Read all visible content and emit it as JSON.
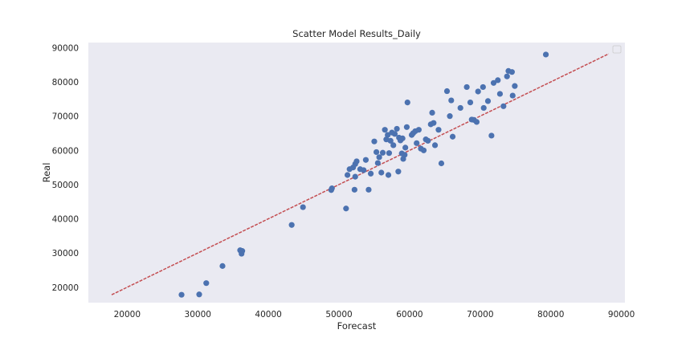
{
  "chart_data": {
    "type": "scatter",
    "title": "Scatter Model Results_Daily",
    "xlabel": "Forecast",
    "ylabel": "Real",
    "xlim": [
      14500,
      90500
    ],
    "ylim": [
      15500,
      91500
    ],
    "xticks": [
      20000,
      30000,
      40000,
      50000,
      60000,
      70000,
      80000,
      90000
    ],
    "yticks": [
      20000,
      30000,
      40000,
      50000,
      60000,
      70000,
      80000,
      90000
    ],
    "grid": false,
    "legend": "top-right (empty)",
    "colors": {
      "background": "#eaeaf2",
      "points": "#4c72b0",
      "fit_line": "#c44e52"
    },
    "fit_line": {
      "style": "dashed",
      "from": [
        17800,
        17800
      ],
      "to": [
        88200,
        88200
      ]
    },
    "points": [
      [
        27700,
        17800
      ],
      [
        30200,
        17900
      ],
      [
        31200,
        21200
      ],
      [
        33500,
        26200
      ],
      [
        36000,
        30800
      ],
      [
        36300,
        30600
      ],
      [
        36200,
        29800
      ],
      [
        43300,
        38200
      ],
      [
        44900,
        43400
      ],
      [
        48900,
        48400
      ],
      [
        49000,
        48900
      ],
      [
        51000,
        43000
      ],
      [
        51200,
        52800
      ],
      [
        51500,
        54500
      ],
      [
        52000,
        55000
      ],
      [
        52300,
        56000
      ],
      [
        52500,
        56800
      ],
      [
        52200,
        48500
      ],
      [
        52300,
        52300
      ],
      [
        53000,
        54500
      ],
      [
        53500,
        54200
      ],
      [
        53800,
        57200
      ],
      [
        54200,
        48500
      ],
      [
        54500,
        53200
      ],
      [
        55000,
        62600
      ],
      [
        55300,
        59500
      ],
      [
        55500,
        56300
      ],
      [
        55700,
        58000
      ],
      [
        56000,
        53500
      ],
      [
        56200,
        59300
      ],
      [
        56500,
        66000
      ],
      [
        56700,
        63200
      ],
      [
        56900,
        64500
      ],
      [
        57000,
        52800
      ],
      [
        57100,
        59200
      ],
      [
        57300,
        62800
      ],
      [
        57500,
        65200
      ],
      [
        57700,
        61500
      ],
      [
        57900,
        64800
      ],
      [
        58200,
        66300
      ],
      [
        58400,
        53800
      ],
      [
        58500,
        63700
      ],
      [
        58700,
        62900
      ],
      [
        58900,
        59100
      ],
      [
        59000,
        63500
      ],
      [
        59100,
        57500
      ],
      [
        59300,
        58700
      ],
      [
        59400,
        60800
      ],
      [
        59600,
        66800
      ],
      [
        59700,
        74000
      ],
      [
        60300,
        64500
      ],
      [
        60500,
        65000
      ],
      [
        60800,
        65600
      ],
      [
        61000,
        62100
      ],
      [
        61300,
        66000
      ],
      [
        61600,
        60500
      ],
      [
        62000,
        60000
      ],
      [
        62300,
        63200
      ],
      [
        62600,
        62800
      ],
      [
        63000,
        67600
      ],
      [
        63200,
        71000
      ],
      [
        63400,
        68000
      ],
      [
        63600,
        61500
      ],
      [
        64100,
        66000
      ],
      [
        64500,
        56200
      ],
      [
        65300,
        77300
      ],
      [
        65700,
        70000
      ],
      [
        65900,
        74600
      ],
      [
        66100,
        64000
      ],
      [
        67200,
        72400
      ],
      [
        68100,
        78500
      ],
      [
        68600,
        74000
      ],
      [
        68800,
        69000
      ],
      [
        69100,
        68900
      ],
      [
        69500,
        68300
      ],
      [
        69700,
        77200
      ],
      [
        70400,
        78500
      ],
      [
        70500,
        72400
      ],
      [
        71100,
        74400
      ],
      [
        71600,
        64300
      ],
      [
        71900,
        79700
      ],
      [
        72500,
        80500
      ],
      [
        72800,
        76500
      ],
      [
        73300,
        72900
      ],
      [
        73800,
        81600
      ],
      [
        74000,
        83200
      ],
      [
        74500,
        82900
      ],
      [
        74600,
        76000
      ],
      [
        74900,
        78800
      ],
      [
        79300,
        88000
      ]
    ]
  }
}
